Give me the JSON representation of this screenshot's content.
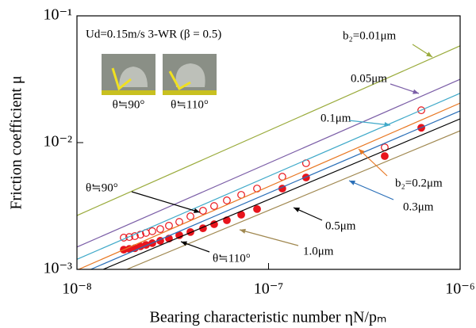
{
  "chart_data": {
    "type": "scatter",
    "title": "Ud=0.15m/s  3-WR (β = 0.5)",
    "x_label": "Bearing characteristic  number ηN/pₘ",
    "y_label": "Friction coefficient μ",
    "xscale": "log",
    "yscale": "log",
    "xlim": [
      1e-08,
      1e-06
    ],
    "ylim": [
      0.001,
      0.1
    ],
    "xticks": [
      {
        "value": 1e-08,
        "label": "10⁻⁸"
      },
      {
        "value": 1e-07,
        "label": "10⁻⁷"
      },
      {
        "value": 1e-06,
        "label": "10⁻⁶"
      }
    ],
    "yticks": [
      {
        "value": 0.001,
        "label": "10⁻³"
      },
      {
        "value": 0.01,
        "label": "10⁻²"
      },
      {
        "value": 0.1,
        "label": "10⁻¹"
      }
    ],
    "grid": false,
    "inset_captions": [
      "θ≒90°",
      "θ≒110°"
    ],
    "series": [
      {
        "name": "θ≒90°",
        "mode": "markers",
        "marker": "open",
        "color": "#e8141c",
        "x": [
          1.755e-08,
          1.876e-08,
          2.005e-08,
          2.145e-08,
          2.293e-08,
          2.474e-08,
          2.721e-08,
          3.022e-08,
          3.421e-08,
          3.91e-08,
          4.55e-08,
          5.2e-08,
          6.06e-08,
          7.2e-08,
          8.71e-08,
          1.18e-07,
          1.57e-07,
          4.04e-07,
          6.27e-07
        ],
        "values": [
          0.00178,
          0.0018,
          0.00183,
          0.00188,
          0.00194,
          0.002,
          0.00208,
          0.00221,
          0.00237,
          0.00262,
          0.0029,
          0.00316,
          0.0035,
          0.00387,
          0.00434,
          0.00538,
          0.00688,
          0.00917,
          0.018
        ]
      },
      {
        "name": "θ≒110°",
        "mode": "markers",
        "marker": "filled",
        "color": "#e8141c",
        "x": [
          1.755e-08,
          1.876e-08,
          2.005e-08,
          2.145e-08,
          2.293e-08,
          2.474e-08,
          2.721e-08,
          3.022e-08,
          3.421e-08,
          3.91e-08,
          4.55e-08,
          5.2e-08,
          6.06e-08,
          7.2e-08,
          8.71e-08,
          1.18e-07,
          1.57e-07,
          4.04e-07,
          6.27e-07
        ],
        "values": [
          0.00143,
          0.00145,
          0.00147,
          0.00152,
          0.00156,
          0.00161,
          0.00168,
          0.00175,
          0.00186,
          0.00197,
          0.00211,
          0.00227,
          0.00244,
          0.0027,
          0.00299,
          0.00434,
          0.00531,
          0.00783,
          0.0131
        ]
      },
      {
        "name": "b₂=0.01μm",
        "mode": "line",
        "color": "#9aab3c",
        "x": [
          1e-08,
          1e-06
        ],
        "values": [
          0.00266,
          0.058
        ]
      },
      {
        "name": "0.05μm",
        "mode": "line",
        "color": "#7b5ea7",
        "x": [
          1e-08,
          1e-06
        ],
        "values": [
          0.0015,
          0.0316
        ]
      },
      {
        "name": "0.1μm",
        "mode": "line",
        "color": "#3fa9c9",
        "x": [
          1e-08,
          1e-06
        ],
        "values": [
          0.0012,
          0.0245
        ]
      },
      {
        "name": "b₂=0.2μm",
        "mode": "line",
        "color": "#e87722",
        "x": [
          1.02e-08,
          1e-06
        ],
        "values": [
          0.001,
          0.0205
        ]
      },
      {
        "name": "0.3μm",
        "mode": "line",
        "color": "#2a6fb8",
        "x": [
          1.18e-08,
          1e-06
        ],
        "values": [
          0.001,
          0.0178
        ]
      },
      {
        "name": "0.5μm",
        "mode": "line",
        "color": "#000000",
        "x": [
          1.37e-08,
          1e-06
        ],
        "values": [
          0.001,
          0.0154
        ]
      },
      {
        "name": "1.0μm",
        "mode": "line",
        "color": "#a08850",
        "x": [
          1.82e-08,
          1e-06
        ],
        "values": [
          0.001,
          0.0124
        ]
      }
    ]
  }
}
